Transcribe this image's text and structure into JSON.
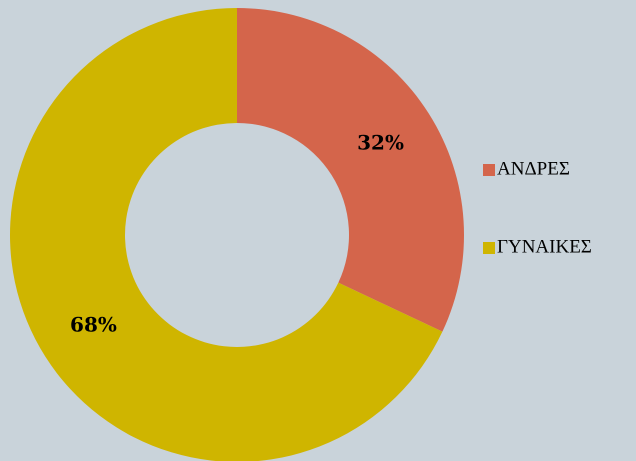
{
  "chart_data": {
    "type": "donut",
    "categories": [
      "ΑΝΔΡΕΣ",
      "ΓΥΝΑΙΚΕΣ"
    ],
    "values": [
      32,
      68
    ],
    "value_labels": [
      "32%",
      "68%"
    ],
    "colors": [
      "#d4654b",
      "#cfb500"
    ],
    "legend": "right"
  }
}
